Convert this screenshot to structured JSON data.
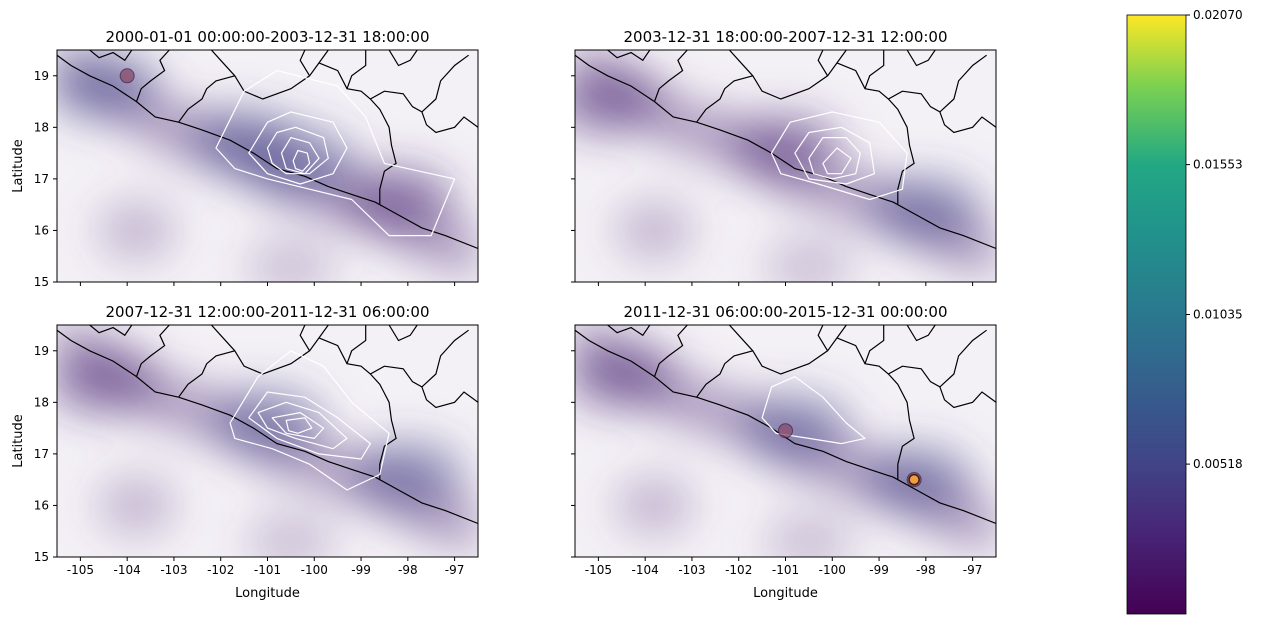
{
  "chart_data": [
    {
      "type": "heatmap",
      "title": "2000-01-01 00:00:00-2003-12-31 18:00:00",
      "xlabel": "",
      "ylabel": "Latitude",
      "xlim": [
        -105.5,
        -96.5
      ],
      "ylim": [
        15,
        19.5
      ],
      "xticks": [
        "-105",
        "-104",
        "-103",
        "-102",
        "-101",
        "-100",
        "-99",
        "-98",
        "-97"
      ],
      "yticks": [
        "15",
        "16",
        "17",
        "18",
        "19"
      ],
      "show_xticklabels": false,
      "show_yticklabels": true,
      "background_peaks": [
        {
          "x": -104.5,
          "y": 18.8,
          "level": 0.006
        },
        {
          "x": -101.5,
          "y": 17.7,
          "level": 0.004
        },
        {
          "x": -100.3,
          "y": 17.3,
          "level": 0.005
        },
        {
          "x": -98.2,
          "y": 16.6,
          "level": 0.003
        }
      ],
      "contours": [
        [
          [
            -102.1,
            17.6
          ],
          [
            -101.5,
            18.7
          ],
          [
            -100.8,
            19.1
          ],
          [
            -99.5,
            18.8
          ],
          [
            -98.9,
            18.2
          ],
          [
            -98.5,
            17.3
          ],
          [
            -97.0,
            17.0
          ],
          [
            -97.5,
            15.9
          ],
          [
            -98.4,
            15.9
          ],
          [
            -99.2,
            16.6
          ],
          [
            -100.1,
            16.8
          ],
          [
            -101.0,
            17.0
          ],
          [
            -101.7,
            17.2
          ]
        ],
        [
          [
            -101.4,
            17.5
          ],
          [
            -101.0,
            18.1
          ],
          [
            -100.5,
            18.3
          ],
          [
            -99.6,
            18.1
          ],
          [
            -99.3,
            17.6
          ],
          [
            -99.6,
            17.1
          ],
          [
            -100.3,
            16.9
          ],
          [
            -101.0,
            17.1
          ]
        ],
        [
          [
            -101.0,
            17.6
          ],
          [
            -100.8,
            17.9
          ],
          [
            -100.4,
            18.0
          ],
          [
            -99.8,
            17.8
          ],
          [
            -99.7,
            17.4
          ],
          [
            -100.1,
            17.1
          ],
          [
            -100.6,
            17.1
          ],
          [
            -100.9,
            17.3
          ]
        ],
        [
          [
            -100.7,
            17.5
          ],
          [
            -100.5,
            17.8
          ],
          [
            -100.1,
            17.7
          ],
          [
            -99.9,
            17.4
          ],
          [
            -100.2,
            17.1
          ],
          [
            -100.6,
            17.2
          ]
        ],
        [
          [
            -100.45,
            17.35
          ],
          [
            -100.35,
            17.55
          ],
          [
            -100.15,
            17.5
          ],
          [
            -100.1,
            17.3
          ],
          [
            -100.25,
            17.15
          ],
          [
            -100.4,
            17.2
          ]
        ]
      ],
      "hotspots": [
        {
          "x": -104.0,
          "y": 19.0,
          "level": 0.008
        }
      ]
    },
    {
      "type": "heatmap",
      "title": "2003-12-31 18:00:00-2007-12-31 12:00:00",
      "xlabel": "",
      "ylabel": "",
      "xlim": [
        -105.5,
        -96.5
      ],
      "ylim": [
        15,
        19.5
      ],
      "xticks": [
        "-105",
        "-104",
        "-103",
        "-102",
        "-101",
        "-100",
        "-99",
        "-98",
        "-97"
      ],
      "yticks": [
        "15",
        "16",
        "17",
        "18",
        "19"
      ],
      "show_xticklabels": false,
      "show_yticklabels": false,
      "background_peaks": [
        {
          "x": -104.8,
          "y": 18.5,
          "level": 0.003
        },
        {
          "x": -101.0,
          "y": 17.6,
          "level": 0.003
        },
        {
          "x": -98.0,
          "y": 16.4,
          "level": 0.005
        }
      ],
      "contours": [
        [
          [
            -101.3,
            17.5
          ],
          [
            -100.9,
            18.1
          ],
          [
            -100.0,
            18.3
          ],
          [
            -99.0,
            18.1
          ],
          [
            -98.4,
            17.5
          ],
          [
            -98.5,
            16.8
          ],
          [
            -99.2,
            16.6
          ],
          [
            -100.3,
            16.9
          ],
          [
            -101.1,
            17.1
          ]
        ],
        [
          [
            -100.8,
            17.5
          ],
          [
            -100.5,
            17.9
          ],
          [
            -99.8,
            18.0
          ],
          [
            -99.2,
            17.7
          ],
          [
            -99.1,
            17.1
          ],
          [
            -99.7,
            16.9
          ],
          [
            -100.5,
            17.0
          ]
        ],
        [
          [
            -100.5,
            17.4
          ],
          [
            -100.2,
            17.8
          ],
          [
            -99.7,
            17.8
          ],
          [
            -99.4,
            17.5
          ],
          [
            -99.5,
            17.1
          ],
          [
            -100.0,
            17.0
          ],
          [
            -100.4,
            17.1
          ]
        ],
        [
          [
            -100.2,
            17.3
          ],
          [
            -99.9,
            17.6
          ],
          [
            -99.6,
            17.4
          ],
          [
            -99.8,
            17.1
          ],
          [
            -100.1,
            17.1
          ]
        ]
      ],
      "hotspots": []
    },
    {
      "type": "heatmap",
      "title": "2007-12-31 12:00:00-2011-12-31 06:00:00",
      "xlabel": "Longitude",
      "ylabel": "Latitude",
      "xlim": [
        -105.5,
        -96.5
      ],
      "ylim": [
        15,
        19.5
      ],
      "xticks": [
        "-105",
        "-104",
        "-103",
        "-102",
        "-101",
        "-100",
        "-99",
        "-98",
        "-97"
      ],
      "yticks": [
        "15",
        "16",
        "17",
        "18",
        "19"
      ],
      "show_xticklabels": true,
      "show_yticklabels": true,
      "background_peaks": [
        {
          "x": -104.5,
          "y": 18.4,
          "level": 0.003
        },
        {
          "x": -101.0,
          "y": 17.6,
          "level": 0.004
        },
        {
          "x": -98.0,
          "y": 16.6,
          "level": 0.004
        }
      ],
      "contours": [
        [
          [
            -101.8,
            17.6
          ],
          [
            -101.2,
            18.5
          ],
          [
            -100.5,
            19.0
          ],
          [
            -99.8,
            18.7
          ],
          [
            -99.2,
            18.0
          ],
          [
            -98.4,
            17.4
          ],
          [
            -98.6,
            16.6
          ],
          [
            -99.3,
            16.3
          ],
          [
            -100.1,
            16.8
          ],
          [
            -100.9,
            17.1
          ],
          [
            -101.7,
            17.3
          ]
        ],
        [
          [
            -101.4,
            17.7
          ],
          [
            -101.0,
            18.2
          ],
          [
            -100.2,
            18.1
          ],
          [
            -99.5,
            17.7
          ],
          [
            -98.8,
            17.2
          ],
          [
            -99.0,
            16.9
          ],
          [
            -99.9,
            17.0
          ],
          [
            -100.8,
            17.3
          ]
        ],
        [
          [
            -101.2,
            17.8
          ],
          [
            -100.6,
            18.0
          ],
          [
            -99.9,
            17.8
          ],
          [
            -99.3,
            17.3
          ],
          [
            -99.6,
            17.1
          ],
          [
            -100.4,
            17.3
          ],
          [
            -101.0,
            17.5
          ]
        ],
        [
          [
            -100.9,
            17.7
          ],
          [
            -100.3,
            17.8
          ],
          [
            -99.8,
            17.5
          ],
          [
            -100.0,
            17.3
          ],
          [
            -100.6,
            17.4
          ]
        ],
        [
          [
            -100.6,
            17.65
          ],
          [
            -100.2,
            17.7
          ],
          [
            -100.05,
            17.5
          ],
          [
            -100.35,
            17.4
          ],
          [
            -100.55,
            17.45
          ]
        ]
      ],
      "hotspots": []
    },
    {
      "type": "heatmap",
      "title": "2011-12-31 06:00:00-2015-12-31 00:00:00",
      "xlabel": "Longitude",
      "ylabel": "",
      "xlim": [
        -105.5,
        -96.5
      ],
      "ylim": [
        15,
        19.5
      ],
      "xticks": [
        "-105",
        "-104",
        "-103",
        "-102",
        "-101",
        "-100",
        "-99",
        "-98",
        "-97"
      ],
      "yticks": [
        "15",
        "16",
        "17",
        "18",
        "19"
      ],
      "show_xticklabels": true,
      "show_yticklabels": false,
      "background_peaks": [
        {
          "x": -104.5,
          "y": 18.5,
          "level": 0.003
        },
        {
          "x": -100.8,
          "y": 17.5,
          "level": 0.005
        },
        {
          "x": -98.2,
          "y": 16.5,
          "level": 0.006
        }
      ],
      "contours": [
        [
          [
            -101.5,
            17.7
          ],
          [
            -101.3,
            18.3
          ],
          [
            -100.8,
            18.5
          ],
          [
            -100.2,
            18.1
          ],
          [
            -99.7,
            17.6
          ],
          [
            -99.3,
            17.3
          ],
          [
            -99.8,
            17.2
          ],
          [
            -100.5,
            17.3
          ],
          [
            -101.2,
            17.4
          ]
        ]
      ],
      "hotspots": [
        {
          "x": -101.0,
          "y": 17.45,
          "level": 0.007
        },
        {
          "x": -98.25,
          "y": 16.5,
          "level": 0.012
        }
      ]
    }
  ],
  "colorbar": {
    "colormap": "viridis",
    "min": 0.0,
    "max": 0.0207,
    "tick_values": [
      0.00518,
      0.01035,
      0.01553,
      0.0207
    ],
    "tick_labels": [
      "0.00518",
      "0.01035",
      "0.01553",
      "0.02070"
    ]
  },
  "colors": {
    "background_haze": "#6a4a8c",
    "contour": "#ffffff",
    "border": "#000000"
  },
  "geography": {
    "coastline": [
      [
        -105.5,
        19.4
      ],
      [
        -105.2,
        19.2
      ],
      [
        -104.8,
        19.0
      ],
      [
        -104.3,
        18.8
      ],
      [
        -103.8,
        18.5
      ],
      [
        -103.4,
        18.2
      ],
      [
        -102.9,
        18.1
      ],
      [
        -102.4,
        17.95
      ],
      [
        -101.8,
        17.75
      ],
      [
        -101.3,
        17.5
      ],
      [
        -100.8,
        17.2
      ],
      [
        -100.2,
        17.05
      ],
      [
        -99.7,
        16.85
      ],
      [
        -99.2,
        16.7
      ],
      [
        -98.7,
        16.55
      ],
      [
        -98.2,
        16.3
      ],
      [
        -97.7,
        16.05
      ],
      [
        -97.2,
        15.9
      ],
      [
        -96.5,
        15.65
      ]
    ],
    "borders": [
      [
        [
          -104.8,
          19.5
        ],
        [
          -104.6,
          19.35
        ],
        [
          -104.3,
          19.45
        ],
        [
          -104.05,
          19.3
        ],
        [
          -103.9,
          19.5
        ]
      ],
      [
        [
          -103.8,
          18.5
        ],
        [
          -103.7,
          18.75
        ],
        [
          -103.5,
          18.9
        ],
        [
          -103.2,
          19.1
        ],
        [
          -103.3,
          19.3
        ],
        [
          -103.1,
          19.5
        ]
      ],
      [
        [
          -102.9,
          18.1
        ],
        [
          -102.7,
          18.35
        ],
        [
          -102.4,
          18.55
        ],
        [
          -102.3,
          18.75
        ],
        [
          -102.1,
          18.9
        ],
        [
          -101.7,
          19.0
        ],
        [
          -101.5,
          18.7
        ],
        [
          -101.1,
          18.55
        ],
        [
          -100.8,
          18.65
        ],
        [
          -100.5,
          18.75
        ],
        [
          -100.1,
          19.0
        ],
        [
          -99.9,
          19.25
        ],
        [
          -99.7,
          19.5
        ]
      ],
      [
        [
          -102.2,
          19.5
        ],
        [
          -102.0,
          19.3
        ],
        [
          -101.7,
          19.0
        ]
      ],
      [
        [
          -100.1,
          19.0
        ],
        [
          -100.3,
          19.3
        ],
        [
          -100.2,
          19.5
        ]
      ],
      [
        [
          -99.9,
          19.25
        ],
        [
          -99.5,
          19.1
        ],
        [
          -99.3,
          18.75
        ],
        [
          -99.0,
          18.7
        ],
        [
          -98.8,
          18.55
        ],
        [
          -98.6,
          18.35
        ],
        [
          -98.4,
          18.0
        ],
        [
          -98.35,
          17.65
        ],
        [
          -98.25,
          17.3
        ],
        [
          -98.5,
          17.15
        ],
        [
          -98.6,
          16.8
        ],
        [
          -98.6,
          16.5
        ]
      ],
      [
        [
          -99.3,
          18.75
        ],
        [
          -99.2,
          19.0
        ],
        [
          -98.9,
          19.2
        ],
        [
          -98.9,
          19.5
        ]
      ],
      [
        [
          -98.8,
          18.55
        ],
        [
          -98.5,
          18.7
        ],
        [
          -98.1,
          18.65
        ],
        [
          -97.9,
          18.4
        ],
        [
          -97.7,
          18.3
        ],
        [
          -97.4,
          18.55
        ],
        [
          -97.3,
          18.9
        ],
        [
          -97.0,
          19.2
        ],
        [
          -96.7,
          19.4
        ]
      ],
      [
        [
          -97.7,
          18.3
        ],
        [
          -97.6,
          18.05
        ],
        [
          -97.4,
          17.9
        ],
        [
          -97.0,
          18.0
        ],
        [
          -96.8,
          18.2
        ],
        [
          -96.5,
          18.0
        ]
      ],
      [
        [
          -98.4,
          19.5
        ],
        [
          -98.2,
          19.2
        ],
        [
          -97.95,
          19.3
        ],
        [
          -97.8,
          19.5
        ]
      ]
    ]
  }
}
